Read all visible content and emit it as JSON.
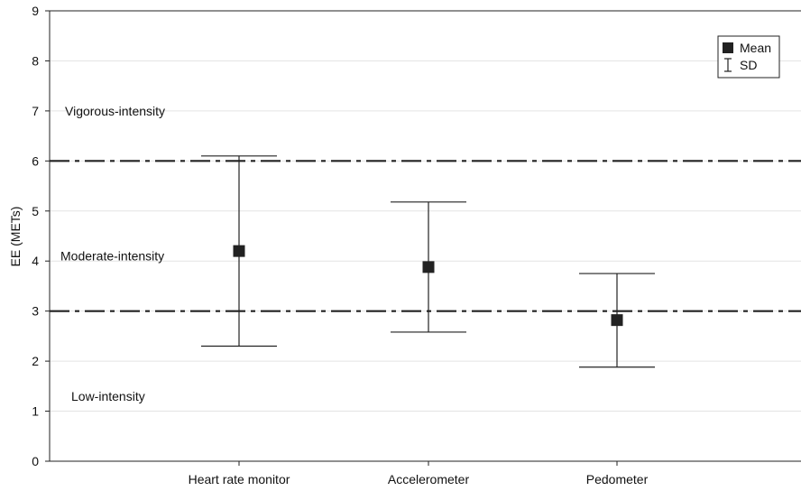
{
  "chart_data": {
    "type": "scatter",
    "title": "",
    "xlabel": "",
    "ylabel": "EE (METs)",
    "ylim": [
      0,
      9
    ],
    "yticks": [
      0,
      1,
      2,
      3,
      4,
      5,
      6,
      7,
      8,
      9
    ],
    "grid": true,
    "categories": [
      "Heart rate monitor",
      "Accelerometer",
      "Pedometer"
    ],
    "series": [
      {
        "name": "Mean",
        "values": [
          4.2,
          3.88,
          2.82
        ]
      }
    ],
    "error_bars": [
      {
        "name": "SD",
        "low": [
          2.3,
          2.58,
          1.88
        ],
        "high": [
          6.1,
          5.18,
          3.75
        ]
      }
    ],
    "reference_lines": [
      {
        "y": 6,
        "style": "dash-dot"
      },
      {
        "y": 3,
        "style": "dash-dot"
      }
    ],
    "zone_labels": [
      {
        "text": "Vigorous-intensity",
        "y": 7.0
      },
      {
        "text": "Moderate-intensity",
        "y": 4.1
      },
      {
        "text": "Low-intensity",
        "y": 1.3
      }
    ],
    "legend": {
      "position": "top-right",
      "items": [
        {
          "label": "Mean",
          "symbol": "filled-square"
        },
        {
          "label": "SD",
          "symbol": "error-bar"
        }
      ]
    }
  }
}
